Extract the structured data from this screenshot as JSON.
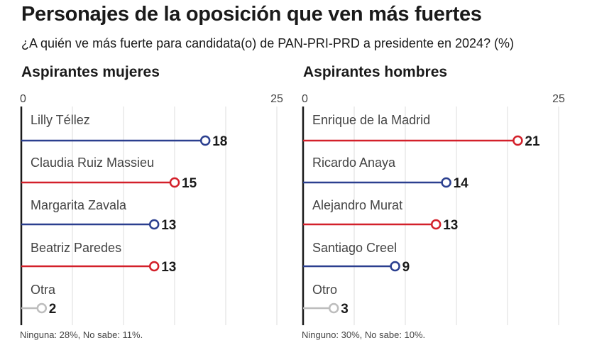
{
  "header": {
    "title": "Personajes de la oposición que ven más fuertes",
    "subtitle": "¿A quién ve más fuerte para candidata(o) de PAN-PRI-PRD a presidente en 2024? (%)"
  },
  "colors": {
    "blue": "#2b3f8f",
    "red": "#d3202a",
    "gray": "#bdbdbd",
    "axis": "#1a1a1a",
    "grid": "#dddddd",
    "label": "#444444"
  },
  "chart_data": [
    {
      "type": "bar",
      "title": "Aspirantes mujeres",
      "xlim": [
        0,
        25
      ],
      "tick_labels": [
        "0",
        "25"
      ],
      "categories": [
        "Lilly Téllez",
        "Claudia Ruiz Massieu",
        "Margarita Zavala",
        "Beatriz Paredes",
        "Otra"
      ],
      "values": [
        18,
        15,
        13,
        13,
        2
      ],
      "value_labels": [
        "18",
        "15",
        "13",
        "13",
        "2"
      ],
      "bar_colors": [
        "blue",
        "red",
        "blue",
        "red",
        "gray"
      ],
      "note": "Ninguna: 28%, No sabe: 11%."
    },
    {
      "type": "bar",
      "title": "Aspirantes hombres",
      "xlim": [
        0,
        25
      ],
      "tick_labels": [
        "0",
        "25"
      ],
      "categories": [
        "Enrique de la Madrid",
        "Ricardo Anaya",
        "Alejandro Murat",
        "Santiago Creel",
        "Otro"
      ],
      "values": [
        21,
        14,
        13,
        9,
        3
      ],
      "value_labels": [
        "21",
        "14",
        "13",
        "9",
        "3"
      ],
      "bar_colors": [
        "red",
        "blue",
        "red",
        "blue",
        "gray"
      ],
      "note": "Ninguno: 30%, No sabe: 10%."
    }
  ]
}
